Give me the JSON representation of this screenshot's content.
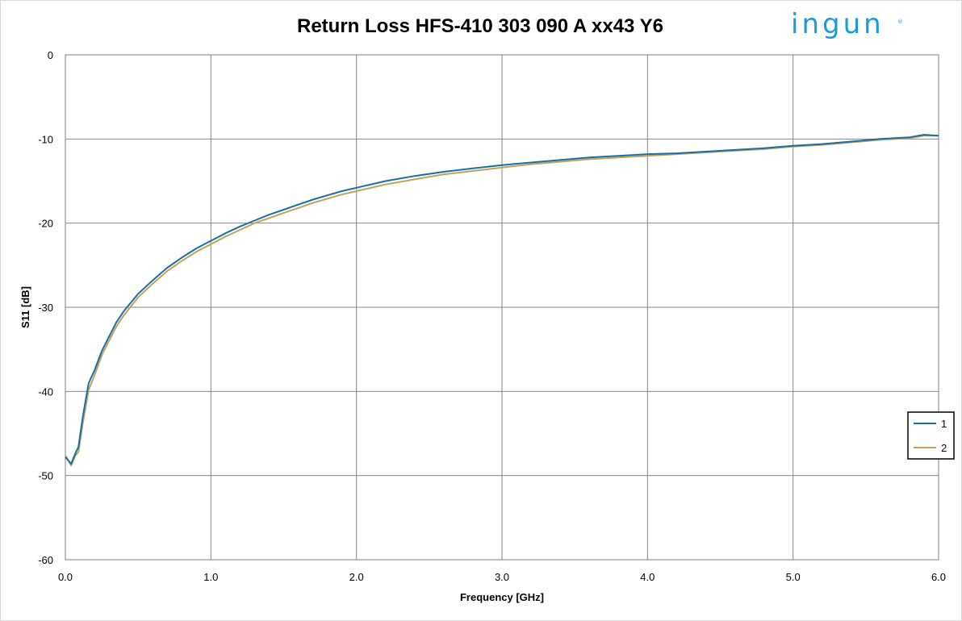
{
  "logo": {
    "text": "ingun",
    "mark": "®",
    "color": "#1d9bd7"
  },
  "chart_data": {
    "type": "line",
    "title": "Return Loss HFS-410 303 090 A xx43 Y6",
    "xlabel": "Frequency [GHz]",
    "ylabel": "S11 [dB]",
    "xlim": [
      0,
      6
    ],
    "ylim": [
      -60,
      0
    ],
    "xticks": [
      "0.0",
      "1.0",
      "2.0",
      "3.0",
      "4.0",
      "5.0",
      "6.0"
    ],
    "yticks": [
      "0",
      "-10",
      "-20",
      "-30",
      "-40",
      "-50",
      "-60"
    ],
    "grid": true,
    "legend_position": "right",
    "series": [
      {
        "name": "1",
        "color": "#1a6fa1",
        "x": [
          0.0,
          0.04,
          0.07,
          0.09,
          0.12,
          0.16,
          0.2,
          0.25,
          0.3,
          0.35,
          0.4,
          0.5,
          0.6,
          0.7,
          0.8,
          0.9,
          1.0,
          1.1,
          1.2,
          1.3,
          1.4,
          1.5,
          1.6,
          1.7,
          1.8,
          1.9,
          2.0,
          2.2,
          2.4,
          2.6,
          2.8,
          3.0,
          3.2,
          3.4,
          3.6,
          3.8,
          4.0,
          4.2,
          4.4,
          4.6,
          4.8,
          5.0,
          5.2,
          5.4,
          5.6,
          5.8,
          5.9,
          6.0
        ],
        "values": [
          -47.8,
          -48.6,
          -47.3,
          -46.6,
          -43.0,
          -39.0,
          -37.5,
          -35.2,
          -33.5,
          -31.8,
          -30.5,
          -28.4,
          -26.8,
          -25.3,
          -24.1,
          -23.0,
          -22.1,
          -21.2,
          -20.4,
          -19.7,
          -19.0,
          -18.4,
          -17.8,
          -17.2,
          -16.7,
          -16.2,
          -15.8,
          -15.0,
          -14.4,
          -13.9,
          -13.5,
          -13.1,
          -12.8,
          -12.5,
          -12.2,
          -12.0,
          -11.8,
          -11.7,
          -11.5,
          -11.3,
          -11.1,
          -10.8,
          -10.6,
          -10.3,
          -10.0,
          -9.8,
          -9.5,
          -9.6
        ]
      },
      {
        "name": "2",
        "color": "#c2a15a",
        "x": [
          0.0,
          0.04,
          0.07,
          0.09,
          0.12,
          0.16,
          0.2,
          0.25,
          0.3,
          0.35,
          0.4,
          0.5,
          0.6,
          0.7,
          0.8,
          0.9,
          1.0,
          1.1,
          1.2,
          1.3,
          1.4,
          1.5,
          1.6,
          1.7,
          1.8,
          1.9,
          2.0,
          2.2,
          2.4,
          2.6,
          2.8,
          3.0,
          3.2,
          3.4,
          3.6,
          3.8,
          4.0,
          4.2,
          4.4,
          4.6,
          4.8,
          5.0,
          5.2,
          5.4,
          5.6,
          5.8,
          5.9,
          6.0
        ],
        "values": [
          -47.6,
          -48.8,
          -47.6,
          -47.2,
          -43.8,
          -39.8,
          -38.1,
          -35.7,
          -34.0,
          -32.3,
          -31.0,
          -28.8,
          -27.2,
          -25.7,
          -24.5,
          -23.4,
          -22.5,
          -21.6,
          -20.8,
          -20.0,
          -19.4,
          -18.8,
          -18.2,
          -17.6,
          -17.1,
          -16.6,
          -16.2,
          -15.4,
          -14.8,
          -14.2,
          -13.8,
          -13.4,
          -13.0,
          -12.7,
          -12.4,
          -12.2,
          -12.0,
          -11.8,
          -11.6,
          -11.4,
          -11.2,
          -10.9,
          -10.7,
          -10.4,
          -10.1,
          -9.9,
          -9.6,
          -9.6
        ]
      }
    ]
  }
}
